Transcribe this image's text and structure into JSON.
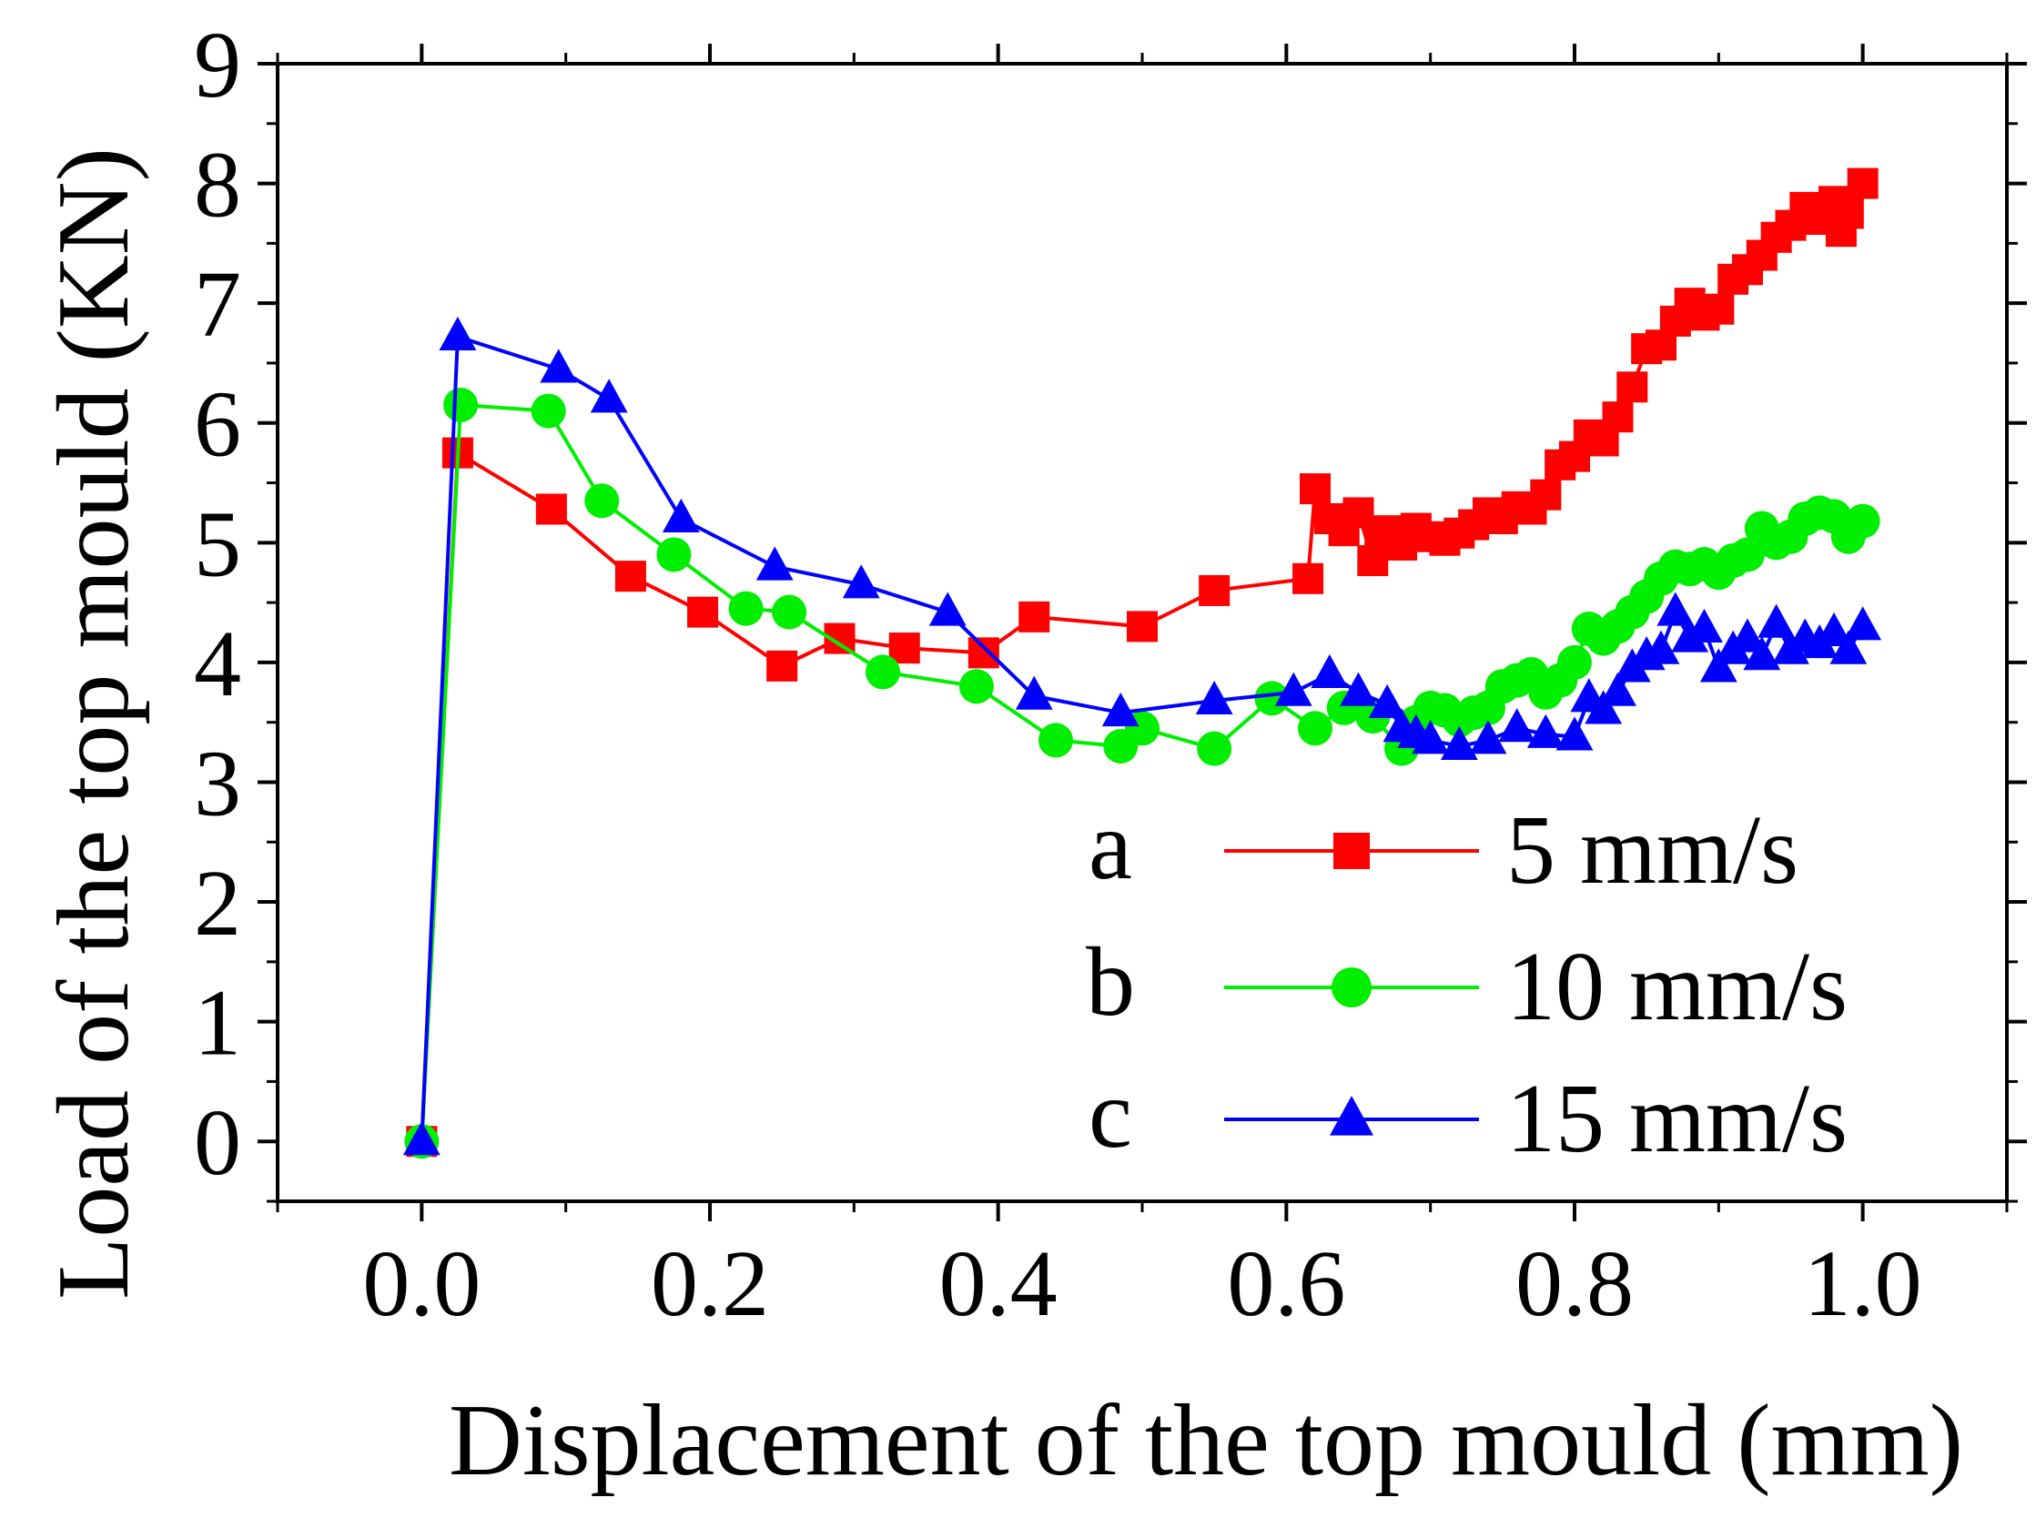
{
  "chart_data": {
    "type": "line",
    "title": "",
    "xlabel": "Displacement of the top mould (mm)",
    "ylabel": "Load of the top mould (KN)",
    "xlim": [
      -0.1,
      1.1
    ],
    "ylim": [
      -0.5,
      9
    ],
    "xticks": [
      0.0,
      0.2,
      0.4,
      0.6,
      0.8,
      1.0
    ],
    "xtick_labels": [
      "0.0",
      "0.2",
      "0.4",
      "0.6",
      "0.8",
      "1.0"
    ],
    "yticks": [
      0,
      1,
      2,
      3,
      4,
      5,
      6,
      7,
      8,
      9
    ],
    "ytick_labels": [
      "0",
      "1",
      "2",
      "3",
      "4",
      "5",
      "6",
      "7",
      "8",
      "9"
    ],
    "grid": false,
    "legend_position": "bottom-right",
    "series": [
      {
        "id": "a",
        "letter": "a",
        "name": "5 mm/s",
        "color": "#ff0000",
        "marker": "square",
        "x": [
          0.0,
          0.025,
          0.09,
          0.145,
          0.195,
          0.25,
          0.29,
          0.335,
          0.39,
          0.425,
          0.5,
          0.55,
          0.615,
          0.62,
          0.63,
          0.64,
          0.65,
          0.66,
          0.665,
          0.67,
          0.68,
          0.69,
          0.7,
          0.71,
          0.72,
          0.73,
          0.74,
          0.75,
          0.76,
          0.77,
          0.78,
          0.79,
          0.8,
          0.81,
          0.82,
          0.83,
          0.84,
          0.85,
          0.86,
          0.87,
          0.88,
          0.89,
          0.9,
          0.91,
          0.92,
          0.93,
          0.94,
          0.95,
          0.96,
          0.97,
          0.98,
          0.985,
          0.99,
          1.0
        ],
        "y": [
          0.0,
          5.75,
          5.28,
          4.72,
          4.42,
          3.97,
          4.2,
          4.12,
          4.08,
          4.38,
          4.3,
          4.6,
          4.7,
          5.45,
          5.2,
          5.1,
          5.25,
          4.85,
          5.0,
          5.1,
          4.98,
          5.12,
          5.05,
          5.02,
          5.08,
          5.15,
          5.25,
          5.2,
          5.3,
          5.28,
          5.4,
          5.65,
          5.72,
          5.9,
          5.85,
          6.05,
          6.3,
          6.62,
          6.65,
          6.85,
          7.0,
          6.9,
          6.95,
          7.2,
          7.28,
          7.4,
          7.55,
          7.65,
          7.8,
          7.7,
          7.85,
          7.6,
          7.75,
          8.0
        ]
      },
      {
        "id": "b",
        "letter": "b",
        "name": "10 mm/s",
        "color": "#00ee00",
        "marker": "circle",
        "x": [
          0.0,
          0.027,
          0.088,
          0.125,
          0.175,
          0.225,
          0.255,
          0.32,
          0.385,
          0.44,
          0.485,
          0.5,
          0.55,
          0.59,
          0.62,
          0.64,
          0.66,
          0.68,
          0.69,
          0.7,
          0.71,
          0.72,
          0.73,
          0.74,
          0.75,
          0.76,
          0.77,
          0.78,
          0.79,
          0.8,
          0.81,
          0.82,
          0.83,
          0.84,
          0.85,
          0.86,
          0.87,
          0.88,
          0.89,
          0.9,
          0.91,
          0.92,
          0.93,
          0.94,
          0.95,
          0.96,
          0.97,
          0.98,
          0.99,
          1.0
        ],
        "y": [
          0.0,
          6.15,
          6.1,
          5.35,
          4.9,
          4.45,
          4.42,
          3.92,
          3.8,
          3.35,
          3.3,
          3.45,
          3.28,
          3.7,
          3.45,
          3.62,
          3.55,
          3.28,
          3.5,
          3.62,
          3.6,
          3.52,
          3.58,
          3.62,
          3.8,
          3.85,
          3.9,
          3.75,
          3.85,
          4.0,
          4.28,
          4.2,
          4.3,
          4.42,
          4.55,
          4.7,
          4.8,
          4.78,
          4.82,
          4.75,
          4.85,
          4.9,
          5.12,
          5.0,
          5.05,
          5.2,
          5.25,
          5.22,
          5.05,
          5.18
        ]
      },
      {
        "id": "c",
        "letter": "c",
        "name": "15 mm/s",
        "color": "#0000ff",
        "marker": "triangle",
        "x": [
          0.0,
          0.025,
          0.095,
          0.13,
          0.18,
          0.245,
          0.305,
          0.365,
          0.425,
          0.485,
          0.55,
          0.605,
          0.63,
          0.65,
          0.67,
          0.68,
          0.69,
          0.7,
          0.72,
          0.74,
          0.76,
          0.78,
          0.8,
          0.81,
          0.82,
          0.83,
          0.84,
          0.85,
          0.86,
          0.87,
          0.88,
          0.89,
          0.9,
          0.91,
          0.92,
          0.93,
          0.94,
          0.95,
          0.96,
          0.97,
          0.98,
          0.99,
          1.0
        ],
        "y": [
          0.0,
          6.72,
          6.45,
          6.2,
          5.2,
          4.8,
          4.65,
          4.42,
          3.72,
          3.58,
          3.68,
          3.75,
          3.9,
          3.75,
          3.65,
          3.45,
          3.4,
          3.35,
          3.3,
          3.35,
          3.45,
          3.4,
          3.38,
          3.7,
          3.6,
          3.75,
          3.95,
          4.05,
          4.1,
          4.42,
          4.2,
          4.28,
          3.95,
          4.1,
          4.2,
          4.05,
          4.32,
          4.1,
          4.2,
          4.15,
          4.25,
          4.1,
          4.3
        ]
      }
    ]
  }
}
